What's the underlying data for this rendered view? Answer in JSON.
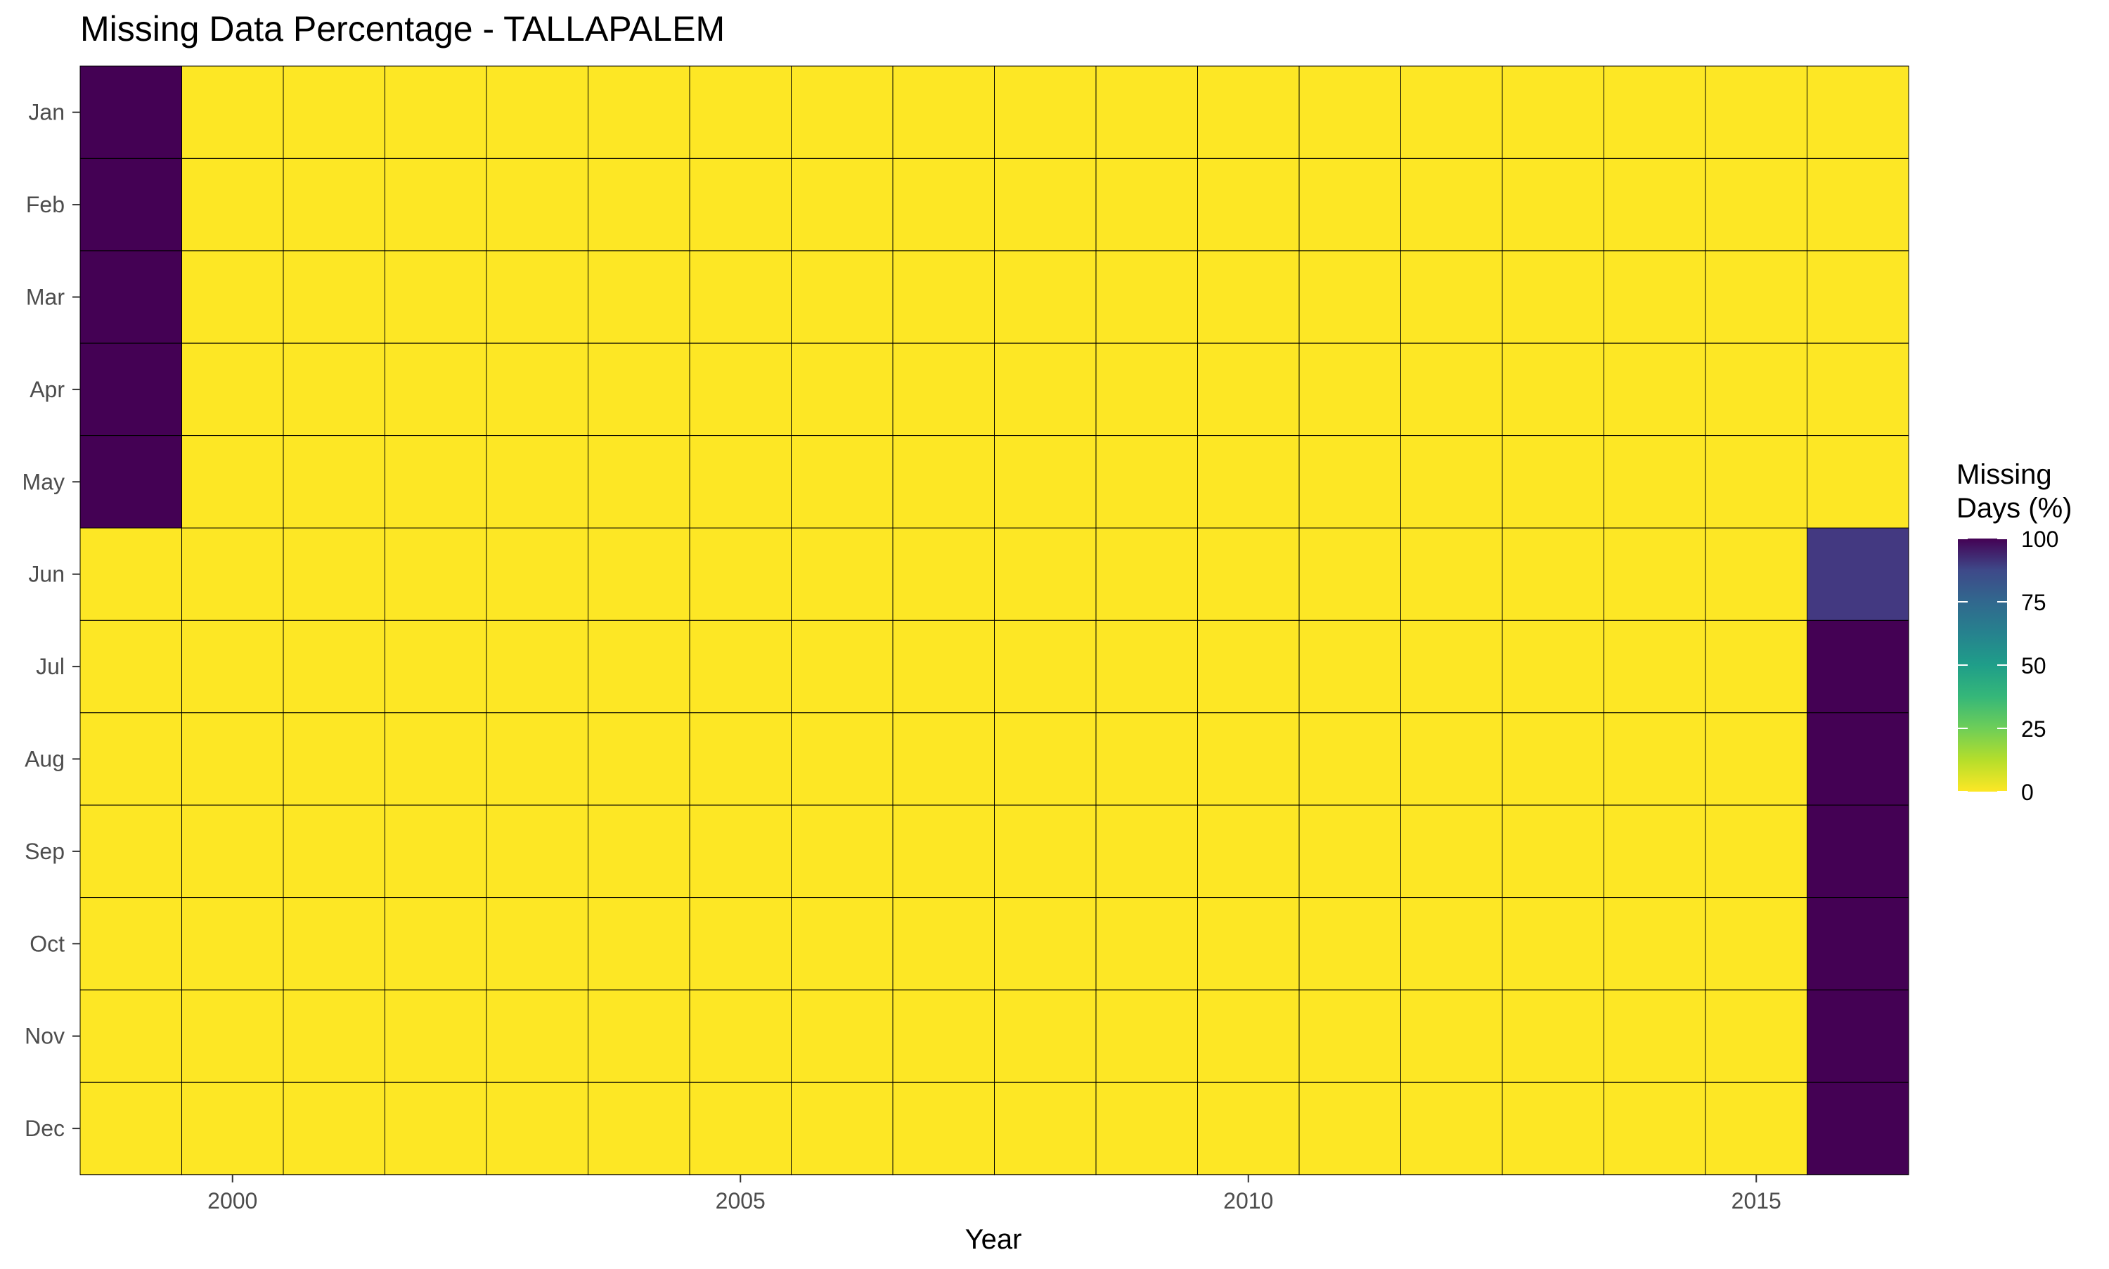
{
  "chart_data": {
    "type": "heatmap",
    "title": "Missing Data Percentage - TALLAPALEM",
    "xlabel": "Year",
    "ylabel": "",
    "x": [
      1999,
      2000,
      2001,
      2002,
      2003,
      2004,
      2005,
      2006,
      2007,
      2008,
      2009,
      2010,
      2011,
      2012,
      2013,
      2014,
      2015,
      2016
    ],
    "x_ticks": [
      2000,
      2005,
      2010,
      2015
    ],
    "y": [
      "Jan",
      "Feb",
      "Mar",
      "Apr",
      "May",
      "Jun",
      "Jul",
      "Aug",
      "Sep",
      "Oct",
      "Nov",
      "Dec"
    ],
    "values": [
      [
        100,
        0,
        0,
        0,
        0,
        0,
        0,
        0,
        0,
        0,
        0,
        0,
        0,
        0,
        0,
        0,
        0,
        0
      ],
      [
        100,
        0,
        0,
        0,
        0,
        0,
        0,
        0,
        0,
        0,
        0,
        0,
        0,
        0,
        0,
        0,
        0,
        0
      ],
      [
        100,
        0,
        0,
        0,
        0,
        0,
        0,
        0,
        0,
        0,
        0,
        0,
        0,
        0,
        0,
        0,
        0,
        0
      ],
      [
        100,
        0,
        0,
        0,
        0,
        0,
        0,
        0,
        0,
        0,
        0,
        0,
        0,
        0,
        0,
        0,
        0,
        0
      ],
      [
        100,
        0,
        0,
        0,
        0,
        0,
        0,
        0,
        0,
        0,
        0,
        0,
        0,
        0,
        0,
        0,
        0,
        0
      ],
      [
        0,
        0,
        0,
        0,
        0,
        0,
        0,
        0,
        0,
        0,
        0,
        0,
        0,
        0,
        0,
        0,
        0,
        83
      ],
      [
        0,
        0,
        0,
        0,
        0,
        0,
        0,
        0,
        0,
        0,
        0,
        0,
        0,
        0,
        0,
        0,
        0,
        100
      ],
      [
        0,
        0,
        0,
        0,
        0,
        0,
        0,
        0,
        0,
        0,
        0,
        0,
        0,
        0,
        0,
        0,
        0,
        100
      ],
      [
        0,
        0,
        0,
        0,
        0,
        0,
        0,
        0,
        0,
        0,
        0,
        0,
        0,
        0,
        0,
        0,
        0,
        100
      ],
      [
        0,
        0,
        0,
        0,
        0,
        0,
        0,
        0,
        0,
        0,
        0,
        0,
        0,
        0,
        0,
        0,
        0,
        100
      ],
      [
        0,
        0,
        0,
        0,
        0,
        0,
        0,
        0,
        0,
        0,
        0,
        0,
        0,
        0,
        0,
        0,
        0,
        100
      ],
      [
        0,
        0,
        0,
        0,
        0,
        0,
        0,
        0,
        0,
        0,
        0,
        0,
        0,
        0,
        0,
        0,
        0,
        100
      ]
    ],
    "legend": {
      "title_line1": "Missing",
      "title_line2": "Days (%)",
      "ticks": [
        100,
        75,
        50,
        25,
        0
      ],
      "range": [
        0,
        100
      ],
      "placement": "right"
    },
    "colormap": "viridis-reversed",
    "grid": false,
    "colors": {
      "low": "#fde725",
      "high": "#440154",
      "cell_border": "#000000",
      "text": "#000000",
      "tick_text": "#4d4d4d"
    }
  }
}
